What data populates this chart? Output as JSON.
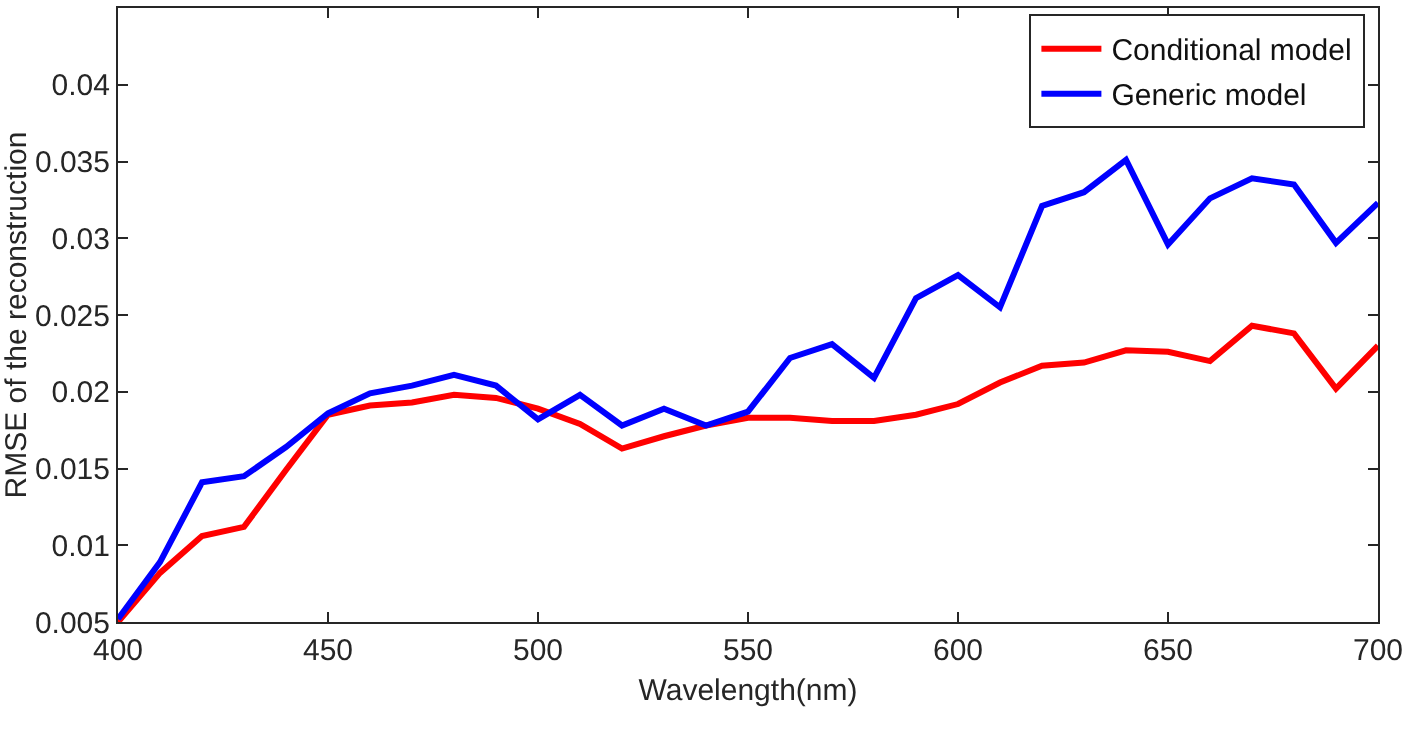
{
  "chart_data": {
    "type": "line",
    "xlabel": "Wavelength(nm)",
    "ylabel": "RMSE of the reconstruction",
    "x": [
      400,
      410,
      420,
      430,
      440,
      450,
      460,
      470,
      480,
      490,
      500,
      510,
      520,
      530,
      540,
      550,
      560,
      570,
      580,
      590,
      600,
      610,
      620,
      630,
      640,
      650,
      660,
      670,
      680,
      690,
      700
    ],
    "series": [
      {
        "name": "Conditional model",
        "color": "#ff0000",
        "values": [
          0.005,
          0.0082,
          0.0106,
          0.0112,
          0.0149,
          0.0185,
          0.0191,
          0.0193,
          0.0198,
          0.0196,
          0.0189,
          0.0179,
          0.0163,
          0.0171,
          0.0178,
          0.0183,
          0.0183,
          0.0181,
          0.0181,
          0.0185,
          0.0192,
          0.0206,
          0.0217,
          0.0219,
          0.0227,
          0.0226,
          0.022,
          0.0243,
          0.0238,
          0.0202,
          0.023
        ]
      },
      {
        "name": "Generic model",
        "color": "#0000ff",
        "values": [
          0.0052,
          0.0089,
          0.0141,
          0.0145,
          0.0164,
          0.0186,
          0.0199,
          0.0204,
          0.0211,
          0.0204,
          0.0182,
          0.0198,
          0.0178,
          0.0189,
          0.0178,
          0.0187,
          0.0222,
          0.0231,
          0.0209,
          0.0261,
          0.0276,
          0.0255,
          0.0321,
          0.033,
          0.0351,
          0.0296,
          0.0326,
          0.0339,
          0.0335,
          0.0297,
          0.0323
        ]
      }
    ],
    "xlim": [
      400,
      700
    ],
    "xticks": [
      400,
      450,
      500,
      550,
      600,
      650,
      700
    ],
    "ylim": [
      0.005,
      0.045
    ],
    "yticks": [
      0.005,
      0.01,
      0.015,
      0.02,
      0.025,
      0.03,
      0.035,
      0.04
    ],
    "grid": false,
    "legend": "top right",
    "marker": "none",
    "line_style": "solid"
  }
}
